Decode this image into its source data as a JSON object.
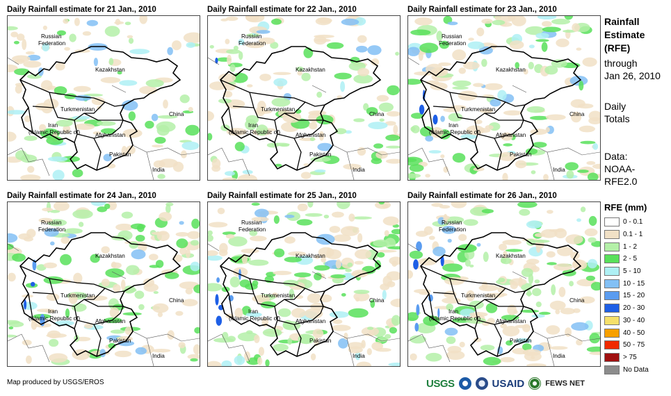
{
  "panels": [
    {
      "title": "Daily Rainfall estimate for 21 Jan., 2010",
      "wetness": 0.35,
      "heavy": 0.0
    },
    {
      "title": "Daily Rainfall estimate for 22 Jan., 2010",
      "wetness": 0.45,
      "heavy": 0.02
    },
    {
      "title": "Daily Rainfall estimate for 23 Jan., 2010",
      "wetness": 0.6,
      "heavy": 0.05
    },
    {
      "title": "Daily Rainfall estimate for 24 Jan., 2010",
      "wetness": 0.6,
      "heavy": 0.06
    },
    {
      "title": "Daily Rainfall estimate for 25 Jan., 2010",
      "wetness": 0.85,
      "heavy": 0.1
    },
    {
      "title": "Daily Rainfall estimate for 26 Jan., 2010",
      "wetness": 0.75,
      "heavy": 0.12
    }
  ],
  "country_labels": {
    "russia_line1": "Russian",
    "russia_line2": "Federation",
    "kazakhstan": "Kazakhstan",
    "turkmenistan": "Turkmenistan",
    "iran_line1": "Iran",
    "iran_line2": "(Islamic Republic of)",
    "afghanistan": "Afghanistan",
    "pakistan": "Pakistan",
    "china": "China",
    "india": "India"
  },
  "side_panel": {
    "title_line1": "Rainfall",
    "title_line2": "Estimate",
    "title_line3": "(RFE)",
    "through_line1": "through",
    "through_line2": "Jan 26, 2010",
    "daily_line1": "Daily",
    "daily_line2": "Totals",
    "data_line1": "Data:",
    "data_line2": "NOAA-",
    "data_line3": "RFE2.0"
  },
  "legend": {
    "title": "RFE (mm)",
    "items": [
      {
        "label": "0 - 0.1",
        "color": "#ffffff"
      },
      {
        "label": "0.1 - 1",
        "color": "#f1e1c6"
      },
      {
        "label": "1 - 2",
        "color": "#b4f0a8"
      },
      {
        "label": "2 - 5",
        "color": "#58e05a"
      },
      {
        "label": "5 - 10",
        "color": "#aef0f4"
      },
      {
        "label": "10 - 15",
        "color": "#82c0f5"
      },
      {
        "label": "15 - 20",
        "color": "#5a9cf0"
      },
      {
        "label": "20 - 30",
        "color": "#1e5fe6"
      },
      {
        "label": "30 - 40",
        "color": "#f6e06a"
      },
      {
        "label": "40 - 50",
        "color": "#f7a000"
      },
      {
        "label": "50 - 75",
        "color": "#f02a00"
      },
      {
        "label": "> 75",
        "color": "#a01010"
      },
      {
        "label": "No Data",
        "color": "#8c8c8c"
      }
    ]
  },
  "footer": {
    "credit": "Map produced by USGS/EROS",
    "logo_usgs": "USGS",
    "logo_usaid": "USAID",
    "logo_fews": "FEWS NET"
  }
}
